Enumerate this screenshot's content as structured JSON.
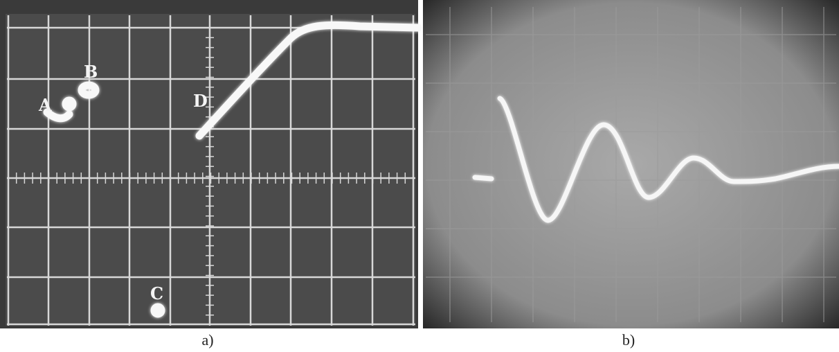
{
  "panels": [
    {
      "caption": "a)",
      "labels": [
        "A",
        "B",
        "C",
        "D"
      ]
    },
    {
      "caption": "b)"
    }
  ]
}
